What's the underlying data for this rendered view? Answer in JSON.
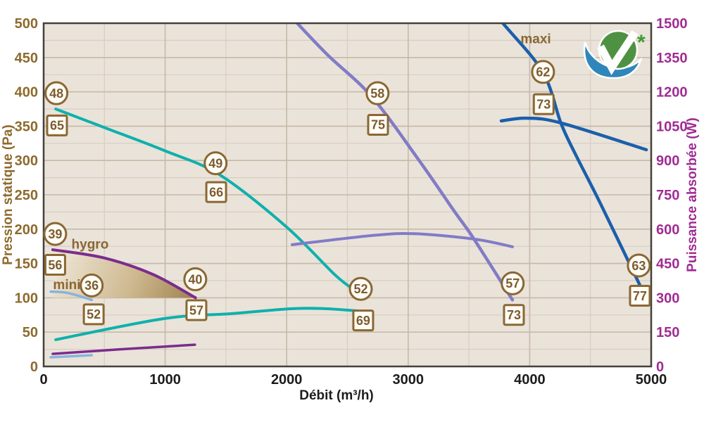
{
  "chart_data": {
    "type": "line",
    "title": "",
    "xlabel": "Débit (m³/h)",
    "ylabel_left": "Pression statique (Pa)",
    "ylabel_right": "Puissance absorbée (W)",
    "xlim": [
      0,
      5000
    ],
    "ylim_left": [
      0,
      500
    ],
    "ylim_right": [
      0,
      1500
    ],
    "x_tick_step": 1000,
    "x_minor_step": 500,
    "pa_tick_step": 50,
    "pa_minor_step": 25,
    "w_tick_step": 150,
    "grid": true,
    "legend": "none",
    "series": [
      {
        "id": "curve-pression-vitesse1",
        "axis": "pa",
        "color": "teal",
        "width": 4,
        "points": [
          [
            100,
            375
          ],
          [
            500,
            348
          ],
          [
            1000,
            314
          ],
          [
            1450,
            279
          ],
          [
            2000,
            203
          ],
          [
            2400,
            133
          ],
          [
            2570,
            110
          ]
        ]
      },
      {
        "id": "curve-puissance-vitesse1",
        "axis": "w",
        "color": "teal",
        "width": 4,
        "points": [
          [
            100,
            117
          ],
          [
            990,
            209
          ],
          [
            1550,
            231
          ],
          [
            2030,
            252
          ],
          [
            2300,
            253
          ],
          [
            2580,
            243
          ]
        ]
      },
      {
        "id": "curve-pression-hygro",
        "axis": "pa",
        "color": "purple",
        "width": 4,
        "points": [
          [
            75,
            170
          ],
          [
            500,
            158
          ],
          [
            900,
            134
          ],
          [
            1250,
            100
          ]
        ]
      },
      {
        "id": "curve-puissance-hygro",
        "axis": "w",
        "color": "purple",
        "width": 3.5,
        "points": [
          [
            75,
            55
          ],
          [
            610,
            74
          ],
          [
            1245,
            95
          ]
        ]
      },
      {
        "id": "curve-pression-mini",
        "axis": "pa",
        "color": "lightblue",
        "width": 3.5,
        "points": [
          [
            58,
            109
          ],
          [
            200,
            107
          ],
          [
            395,
            97
          ]
        ]
      },
      {
        "id": "curve-puissance-mini",
        "axis": "w",
        "color": "lightblue",
        "width": 3.5,
        "points": [
          [
            58,
            40
          ],
          [
            395,
            49
          ]
        ]
      },
      {
        "id": "curve-pression-vitesse2",
        "axis": "pa",
        "color": "lavender",
        "width": 4.5,
        "points": [
          [
            2034,
            510
          ],
          [
            2330,
            455
          ],
          [
            2700,
            393
          ],
          [
            3090,
            300
          ],
          [
            3380,
            226
          ],
          [
            3540,
            186
          ],
          [
            3858,
            97
          ]
        ]
      },
      {
        "id": "curve-puissance-vitesse2",
        "axis": "w",
        "color": "lavender",
        "width": 4,
        "points": [
          [
            2045,
            532
          ],
          [
            2700,
            572
          ],
          [
            3050,
            580
          ],
          [
            3550,
            556
          ],
          [
            3858,
            523
          ]
        ]
      },
      {
        "id": "curve-pression-maxi",
        "axis": "pa",
        "color": "blue",
        "width": 4.5,
        "points": [
          [
            3755,
            510
          ],
          [
            3780,
            500
          ],
          [
            4107,
            429
          ],
          [
            4258,
            354
          ],
          [
            4374,
            310
          ],
          [
            4583,
            237
          ],
          [
            4913,
            116
          ]
        ]
      },
      {
        "id": "curve-puissance-maxi",
        "axis": "w",
        "color": "blue",
        "width": 4.5,
        "points": [
          [
            3766,
            1073
          ],
          [
            3975,
            1085
          ],
          [
            4258,
            1064
          ],
          [
            4960,
            947
          ]
        ]
      }
    ],
    "hygro_area": {
      "top_points": [
        [
          75,
          170
        ],
        [
          500,
          158
        ],
        [
          900,
          134
        ],
        [
          1250,
          100
        ]
      ],
      "bottom_pa": 100
    },
    "annotations": [
      {
        "circle": "48",
        "square": "65",
        "q_circle": 105,
        "pa_circle": 398,
        "q_square": 110,
        "pa_square": 351
      },
      {
        "circle": "49",
        "square": "66",
        "q_circle": 1415,
        "pa_circle": 296,
        "q_square": 1420,
        "pa_square": 254
      },
      {
        "circle": "52",
        "square": "69",
        "q_circle": 2610,
        "pa_circle": 113,
        "q_square": 2630,
        "pa_square": 67
      },
      {
        "circle": "39",
        "square": "56",
        "q_circle": 95,
        "pa_circle": 193,
        "q_square": 95,
        "pa_square": 148
      },
      {
        "circle": "36",
        "square": "52",
        "q_circle": 395,
        "pa_circle": 118,
        "q_square": 412,
        "pa_square": 76
      },
      {
        "circle": "40",
        "square": "57",
        "q_circle": 1248,
        "pa_circle": 127,
        "q_square": 1257,
        "pa_square": 82
      },
      {
        "circle": "58",
        "square": "75",
        "q_circle": 2748,
        "pa_circle": 398,
        "q_square": 2752,
        "pa_square": 352
      },
      {
        "circle": "57",
        "square": "73",
        "q_circle": 3860,
        "pa_circle": 121,
        "q_square": 3870,
        "pa_square": 75
      },
      {
        "circle": "62",
        "square": "73",
        "q_circle": 4110,
        "pa_circle": 429,
        "q_square": 4115,
        "pa_square": 382
      },
      {
        "circle": "63",
        "square": "77",
        "q_circle": 4898,
        "pa_circle": 147,
        "q_square": 4907,
        "pa_square": 103
      }
    ],
    "curve_labels": [
      {
        "text": "maxi",
        "q": 4050,
        "pa": 477
      },
      {
        "text": "hygro",
        "q": 382,
        "pa": 178
      },
      {
        "text": "mini",
        "q": 191,
        "pa": 119
      }
    ],
    "logo": {
      "asterisk": "*"
    }
  },
  "colors": {
    "teal": "#0fb0ac",
    "lavender": "#817bc7",
    "blue": "#1b5fab",
    "purple": "#7b2c8c",
    "lightblue": "#88b3de",
    "brown": "#8a6734",
    "brown_text": "#7d5c30",
    "left_axis": "#8d6a2d",
    "right_axis": "#a02c93",
    "x_axis": "#1c1c1c",
    "plot_bg": "#eae3d9",
    "grid_minor": "#d8cec2",
    "grid_major": "#c6b9a8",
    "border": "#44403a",
    "area_from": "#ece3d2",
    "area_mid": "#cdb68c",
    "area_to": "#9c7f4a",
    "logo_green": "#4f9143",
    "logo_blue": "#2f86ba",
    "asterisk_green": "#3f9b35"
  }
}
